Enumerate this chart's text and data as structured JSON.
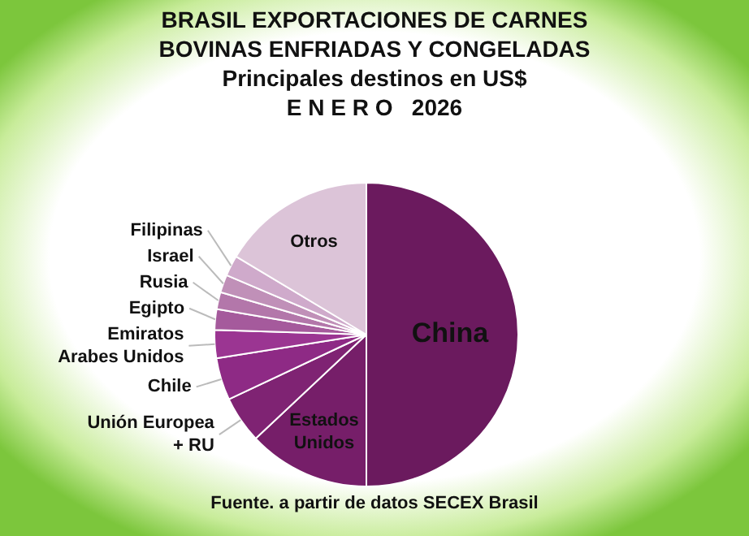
{
  "chart_data": {
    "type": "pie",
    "title": "BRASIL EXPORTACIONES DE CARNES BOVINAS ENFRIADAS Y CONGELADAS",
    "subtitle": "Principales destinos en US$",
    "categories": [
      "China",
      "Estados Unidos",
      "Unión Europea + RU",
      "Chile",
      "Emiratos Arabes Unidos",
      "Egipto",
      "Rusia",
      "Israel",
      "Filipinas",
      "Otros"
    ],
    "values": [
      50,
      13,
      5,
      4.5,
      3,
      2.2,
      1.8,
      1.9,
      2.2,
      16.4
    ],
    "colors": [
      "#6b1a5e",
      "#761e69",
      "#7f2373",
      "#8e2a85",
      "#9b3592",
      "#a55a9c",
      "#b377aa",
      "#c090b8",
      "#cfaacb",
      "#dcc4d8"
    ],
    "legend": false,
    "annotations": [
      "E N E R O   2026",
      "Fuente. a partir de datos SECEX Brasil"
    ]
  }
}
